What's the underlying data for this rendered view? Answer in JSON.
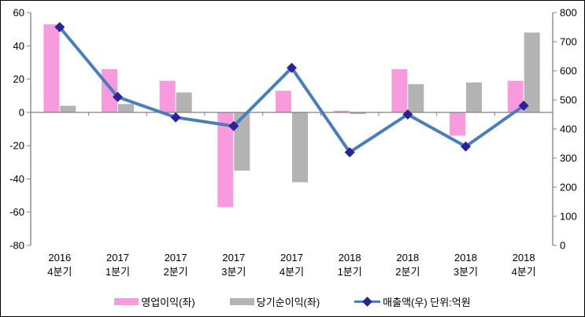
{
  "figure": {
    "background": "#ffffff",
    "border_color": "#000000"
  },
  "chart_data": {
    "type": "bar",
    "subtype": "combo-bar-line-dual-axis",
    "title": "",
    "xlabel": "",
    "ylabel_left": "",
    "ylabel_right": "",
    "categories": [
      [
        "2016",
        "4분기"
      ],
      [
        "2017",
        "1분기"
      ],
      [
        "2017",
        "2분기"
      ],
      [
        "2017",
        "3분기"
      ],
      [
        "2017",
        "4분기"
      ],
      [
        "2018",
        "1분기"
      ],
      [
        "2018",
        "2분기"
      ],
      [
        "2018",
        "3분기"
      ],
      [
        "2018",
        "4분기"
      ]
    ],
    "series": [
      {
        "name": "영업이익(좌)",
        "type": "bar",
        "axis": "left",
        "color": "#F79BDE",
        "values": [
          53,
          26,
          19,
          -57,
          13,
          1,
          26,
          -14,
          19
        ]
      },
      {
        "name": "당기순이익(좌)",
        "type": "bar",
        "axis": "left",
        "color": "#B3B3B3",
        "values": [
          4,
          5,
          12,
          -35,
          -42,
          -1,
          17,
          18,
          48
        ]
      },
      {
        "name": "매출액(우) 단위:억원",
        "type": "line",
        "axis": "right",
        "color": "#4A7EBB",
        "marker": "diamond",
        "marker_color": "#2B2199",
        "values": [
          750,
          510,
          440,
          410,
          610,
          320,
          450,
          340,
          480
        ]
      }
    ],
    "left_axis": {
      "min": -80,
      "max": 60,
      "step": 20,
      "ticks": [
        60,
        40,
        20,
        0,
        -20,
        -40,
        -60,
        -80
      ]
    },
    "right_axis": {
      "min": 0,
      "max": 800,
      "step": 100,
      "ticks": [
        800,
        700,
        600,
        500,
        400,
        300,
        200,
        100,
        0
      ]
    },
    "legend_position": "bottom",
    "grid": "zero-line-only",
    "axis_color": "#808080",
    "text_color": "#000000"
  }
}
